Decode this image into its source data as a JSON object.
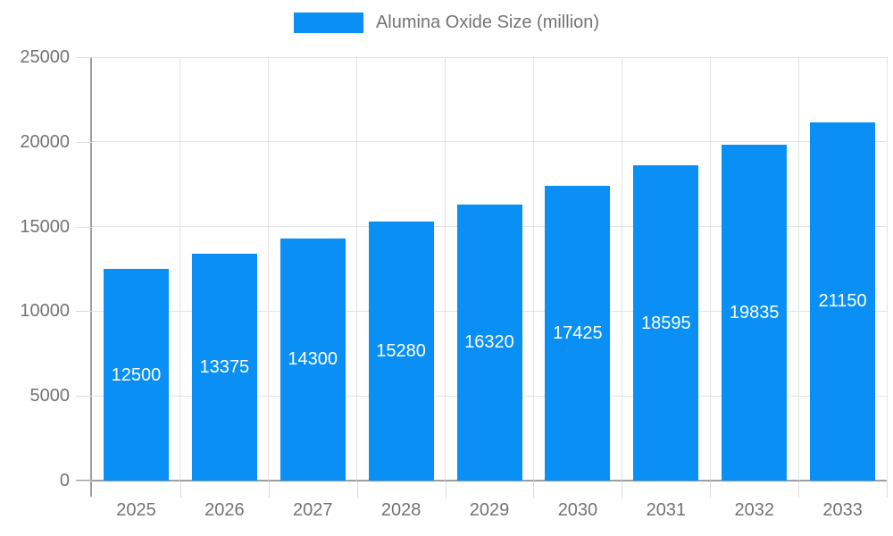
{
  "chart_data": {
    "type": "bar",
    "title": "Alumina Oxide Size (million)",
    "legend": {
      "label": "Alumina Oxide Size (million)",
      "position": "top"
    },
    "categories": [
      "2025",
      "2026",
      "2027",
      "2028",
      "2029",
      "2030",
      "2031",
      "2032",
      "2033"
    ],
    "series": [
      {
        "name": "Alumina Oxide Size (million)",
        "values": [
          12500,
          13375,
          14300,
          15280,
          16320,
          17425,
          18595,
          19835,
          21150
        ]
      }
    ],
    "data_labels": [
      "12500",
      "13375",
      "14300",
      "15280",
      "16320",
      "17425",
      "18595",
      "19835",
      "21150"
    ],
    "xlabel": "",
    "ylabel": "",
    "ylim": [
      0,
      25000
    ],
    "y_ticks": [
      0,
      5000,
      10000,
      15000,
      20000,
      25000
    ],
    "y_tick_labels": [
      "0",
      "5000",
      "10000",
      "15000",
      "20000",
      "25000"
    ],
    "grid": true,
    "colors": {
      "bar": "#0a90f5",
      "bar_label_text": "#ffffff",
      "axis_line": "#9e9e9e",
      "gridline": "#e3e3e3",
      "tick": "#dcdcdc",
      "axis_text": "#737373",
      "legend_text": "#737373"
    }
  }
}
